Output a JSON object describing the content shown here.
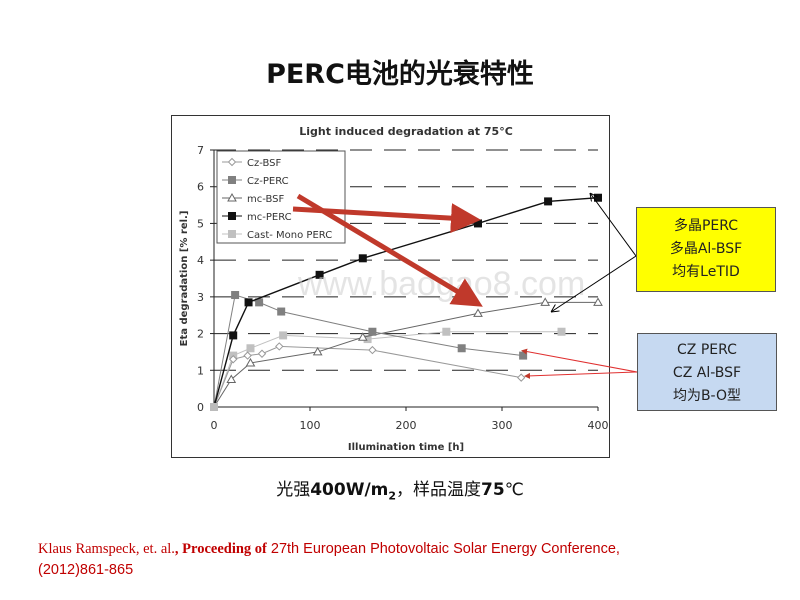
{
  "slide": {
    "title": "PERC电池的光衰特性",
    "caption": {
      "part1": "光强",
      "part2": "400W/m",
      "sub": "2",
      "part3": "，样品温度",
      "part4": "75",
      "part5": "℃"
    },
    "citation": {
      "authors": "Klaus Ramspeck, et. al.",
      "comma": ", ",
      "proceeding": "Proceeding of",
      "rest1": " 27th European Photovoltaic Solar Energy Conference,",
      "rest2": "(2012)861-865"
    },
    "callout_mc": [
      "多晶PERC",
      "多晶Al-BSF",
      "均有LeTID"
    ],
    "callout_cz": [
      "CZ PERC",
      "CZ Al-BSF",
      "均为B-O型"
    ],
    "watermark": "www.baogao8.com"
  },
  "colors": {
    "arrow_red": "#c0392b",
    "callout_yellow": "#ffff00",
    "callout_blue": "#c6d9f1",
    "citation_red": "#c00000"
  },
  "chart_data": {
    "type": "line",
    "title": "Light induced degradation at 75°C",
    "xlabel": "Illumination time [h]",
    "ylabel": "Eta degradation [% rel.]",
    "xlim": [
      0,
      400
    ],
    "ylim": [
      0,
      7
    ],
    "xticks": [
      0,
      100,
      200,
      300,
      400
    ],
    "yticks": [
      0,
      1,
      2,
      3,
      4,
      5,
      6,
      7
    ],
    "grid": true,
    "legend_position": "top-left",
    "series": [
      {
        "name": "Cz-BSF",
        "marker": "diamond-open",
        "color": "#999999",
        "points": [
          [
            0,
            0
          ],
          [
            20,
            1.3
          ],
          [
            35,
            1.4
          ],
          [
            50,
            1.45
          ],
          [
            68,
            1.65
          ],
          [
            165,
            1.55
          ],
          [
            320,
            0.8
          ]
        ]
      },
      {
        "name": "Cz-PERC",
        "marker": "square",
        "color": "#808080",
        "points": [
          [
            0,
            0
          ],
          [
            22,
            3.05
          ],
          [
            47,
            2.85
          ],
          [
            70,
            2.6
          ],
          [
            165,
            2.05
          ],
          [
            258,
            1.6
          ],
          [
            322,
            1.4
          ]
        ]
      },
      {
        "name": "mc-BSF",
        "marker": "triangle-open",
        "color": "#666666",
        "points": [
          [
            0,
            0
          ],
          [
            18,
            0.75
          ],
          [
            38,
            1.2
          ],
          [
            108,
            1.5
          ],
          [
            155,
            1.9
          ],
          [
            275,
            2.55
          ],
          [
            345,
            2.85
          ],
          [
            400,
            2.85
          ]
        ]
      },
      {
        "name": "mc-PERC",
        "marker": "square",
        "color": "#111111",
        "points": [
          [
            0,
            0
          ],
          [
            20,
            1.95
          ],
          [
            36,
            2.85
          ],
          [
            110,
            3.6
          ],
          [
            155,
            4.05
          ],
          [
            275,
            5.0
          ],
          [
            348,
            5.6
          ],
          [
            400,
            5.7
          ]
        ]
      },
      {
        "name": "Cast- Mono PERC",
        "marker": "square",
        "color": "#c0c0c0",
        "points": [
          [
            0,
            0
          ],
          [
            20,
            1.4
          ],
          [
            38,
            1.6
          ],
          [
            72,
            1.95
          ],
          [
            160,
            1.85
          ],
          [
            242,
            2.05
          ],
          [
            362,
            2.05
          ]
        ]
      }
    ]
  }
}
